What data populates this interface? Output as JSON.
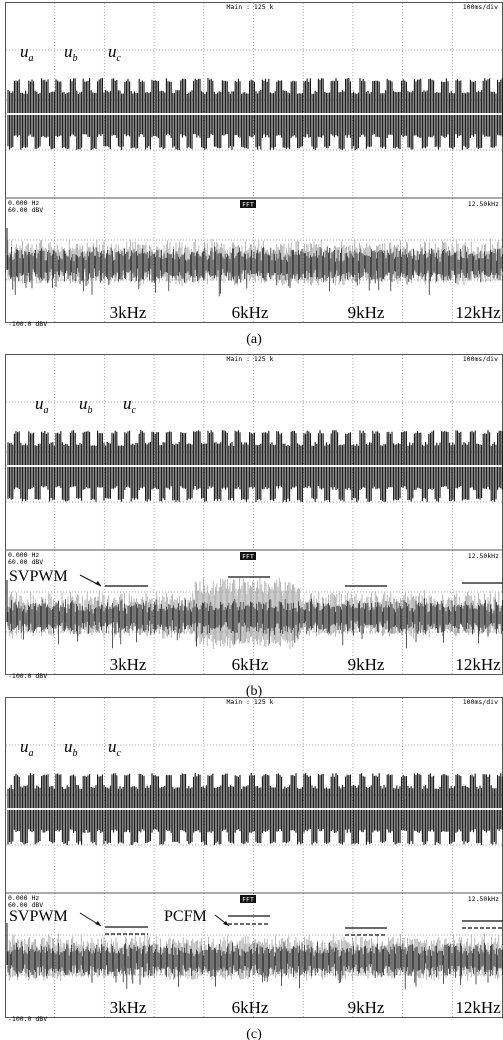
{
  "panels": [
    {
      "header": {
        "main": "Main : 125 k",
        "timebase": "100ms/div"
      },
      "phases": [
        {
          "base": "u",
          "sub": "a"
        },
        {
          "base": "u",
          "sub": "b"
        },
        {
          "base": "u",
          "sub": "c"
        }
      ],
      "fft": {
        "start": "0.000 Hz",
        "ref": "60.00 dBV",
        "mode": "FFT",
        "span": "12.50kHz",
        "floor": "-100.0 dBV"
      },
      "freq_labels": [
        "3kHz",
        "6kHz",
        "9kHz",
        "12kHz"
      ],
      "annotations": [],
      "caption": "(a)"
    },
    {
      "header": {
        "main": "Main : 125 k",
        "timebase": "100ms/div"
      },
      "phases": [
        {
          "base": "u",
          "sub": "a"
        },
        {
          "base": "u",
          "sub": "b"
        },
        {
          "base": "u",
          "sub": "c"
        }
      ],
      "fft": {
        "start": "0.000 Hz",
        "ref": "60.00 dBV",
        "mode": "FFT",
        "span": "12.50kHz",
        "floor": "-100.0 dBV"
      },
      "freq_labels": [
        "3kHz",
        "6kHz",
        "9kHz",
        "12kHz"
      ],
      "annotations": [
        "SVPWM"
      ],
      "caption": "(b)"
    },
    {
      "header": {
        "main": "Main : 125 k",
        "timebase": "100ms/div"
      },
      "phases": [
        {
          "base": "u",
          "sub": "a"
        },
        {
          "base": "u",
          "sub": "b"
        },
        {
          "base": "u",
          "sub": "c"
        }
      ],
      "fft": {
        "start": "0.000 Hz",
        "ref": "60.00 dBV",
        "mode": "FFT",
        "span": "12.50kHz",
        "floor": "-100.0 dBV"
      },
      "freq_labels": [
        "3kHz",
        "6kHz",
        "9kHz",
        "12kHz"
      ],
      "annotations": [
        "SVPWM",
        "PCFM"
      ],
      "caption": "(c)"
    }
  ]
}
